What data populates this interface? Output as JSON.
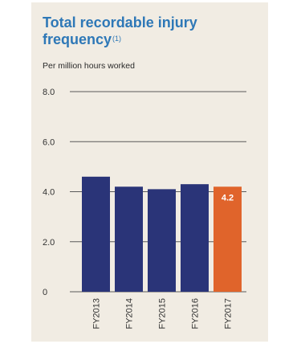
{
  "chart_data": {
    "type": "bar",
    "title": "Total recordable injury frequency",
    "title_footnote": "(1)",
    "subtitle": "Per million hours worked",
    "categories": [
      "FY2013",
      "FY2014",
      "FY2015",
      "FY2016",
      "FY2017"
    ],
    "values": [
      4.6,
      4.2,
      4.1,
      4.3,
      4.2
    ],
    "data_labels": [
      "",
      "",
      "",
      "",
      "4.2"
    ],
    "y_ticks": [
      "8.0",
      "6.0",
      "4.0",
      "2.0",
      "0"
    ],
    "ylim": [
      0,
      8
    ],
    "grid": true,
    "colors": {
      "bar": "#2a3478",
      "highlight": "#e0642b",
      "title": "#2e78b7",
      "grid": "#5a5a5a",
      "background": "#f1ece3"
    },
    "highlight_index": 4
  }
}
